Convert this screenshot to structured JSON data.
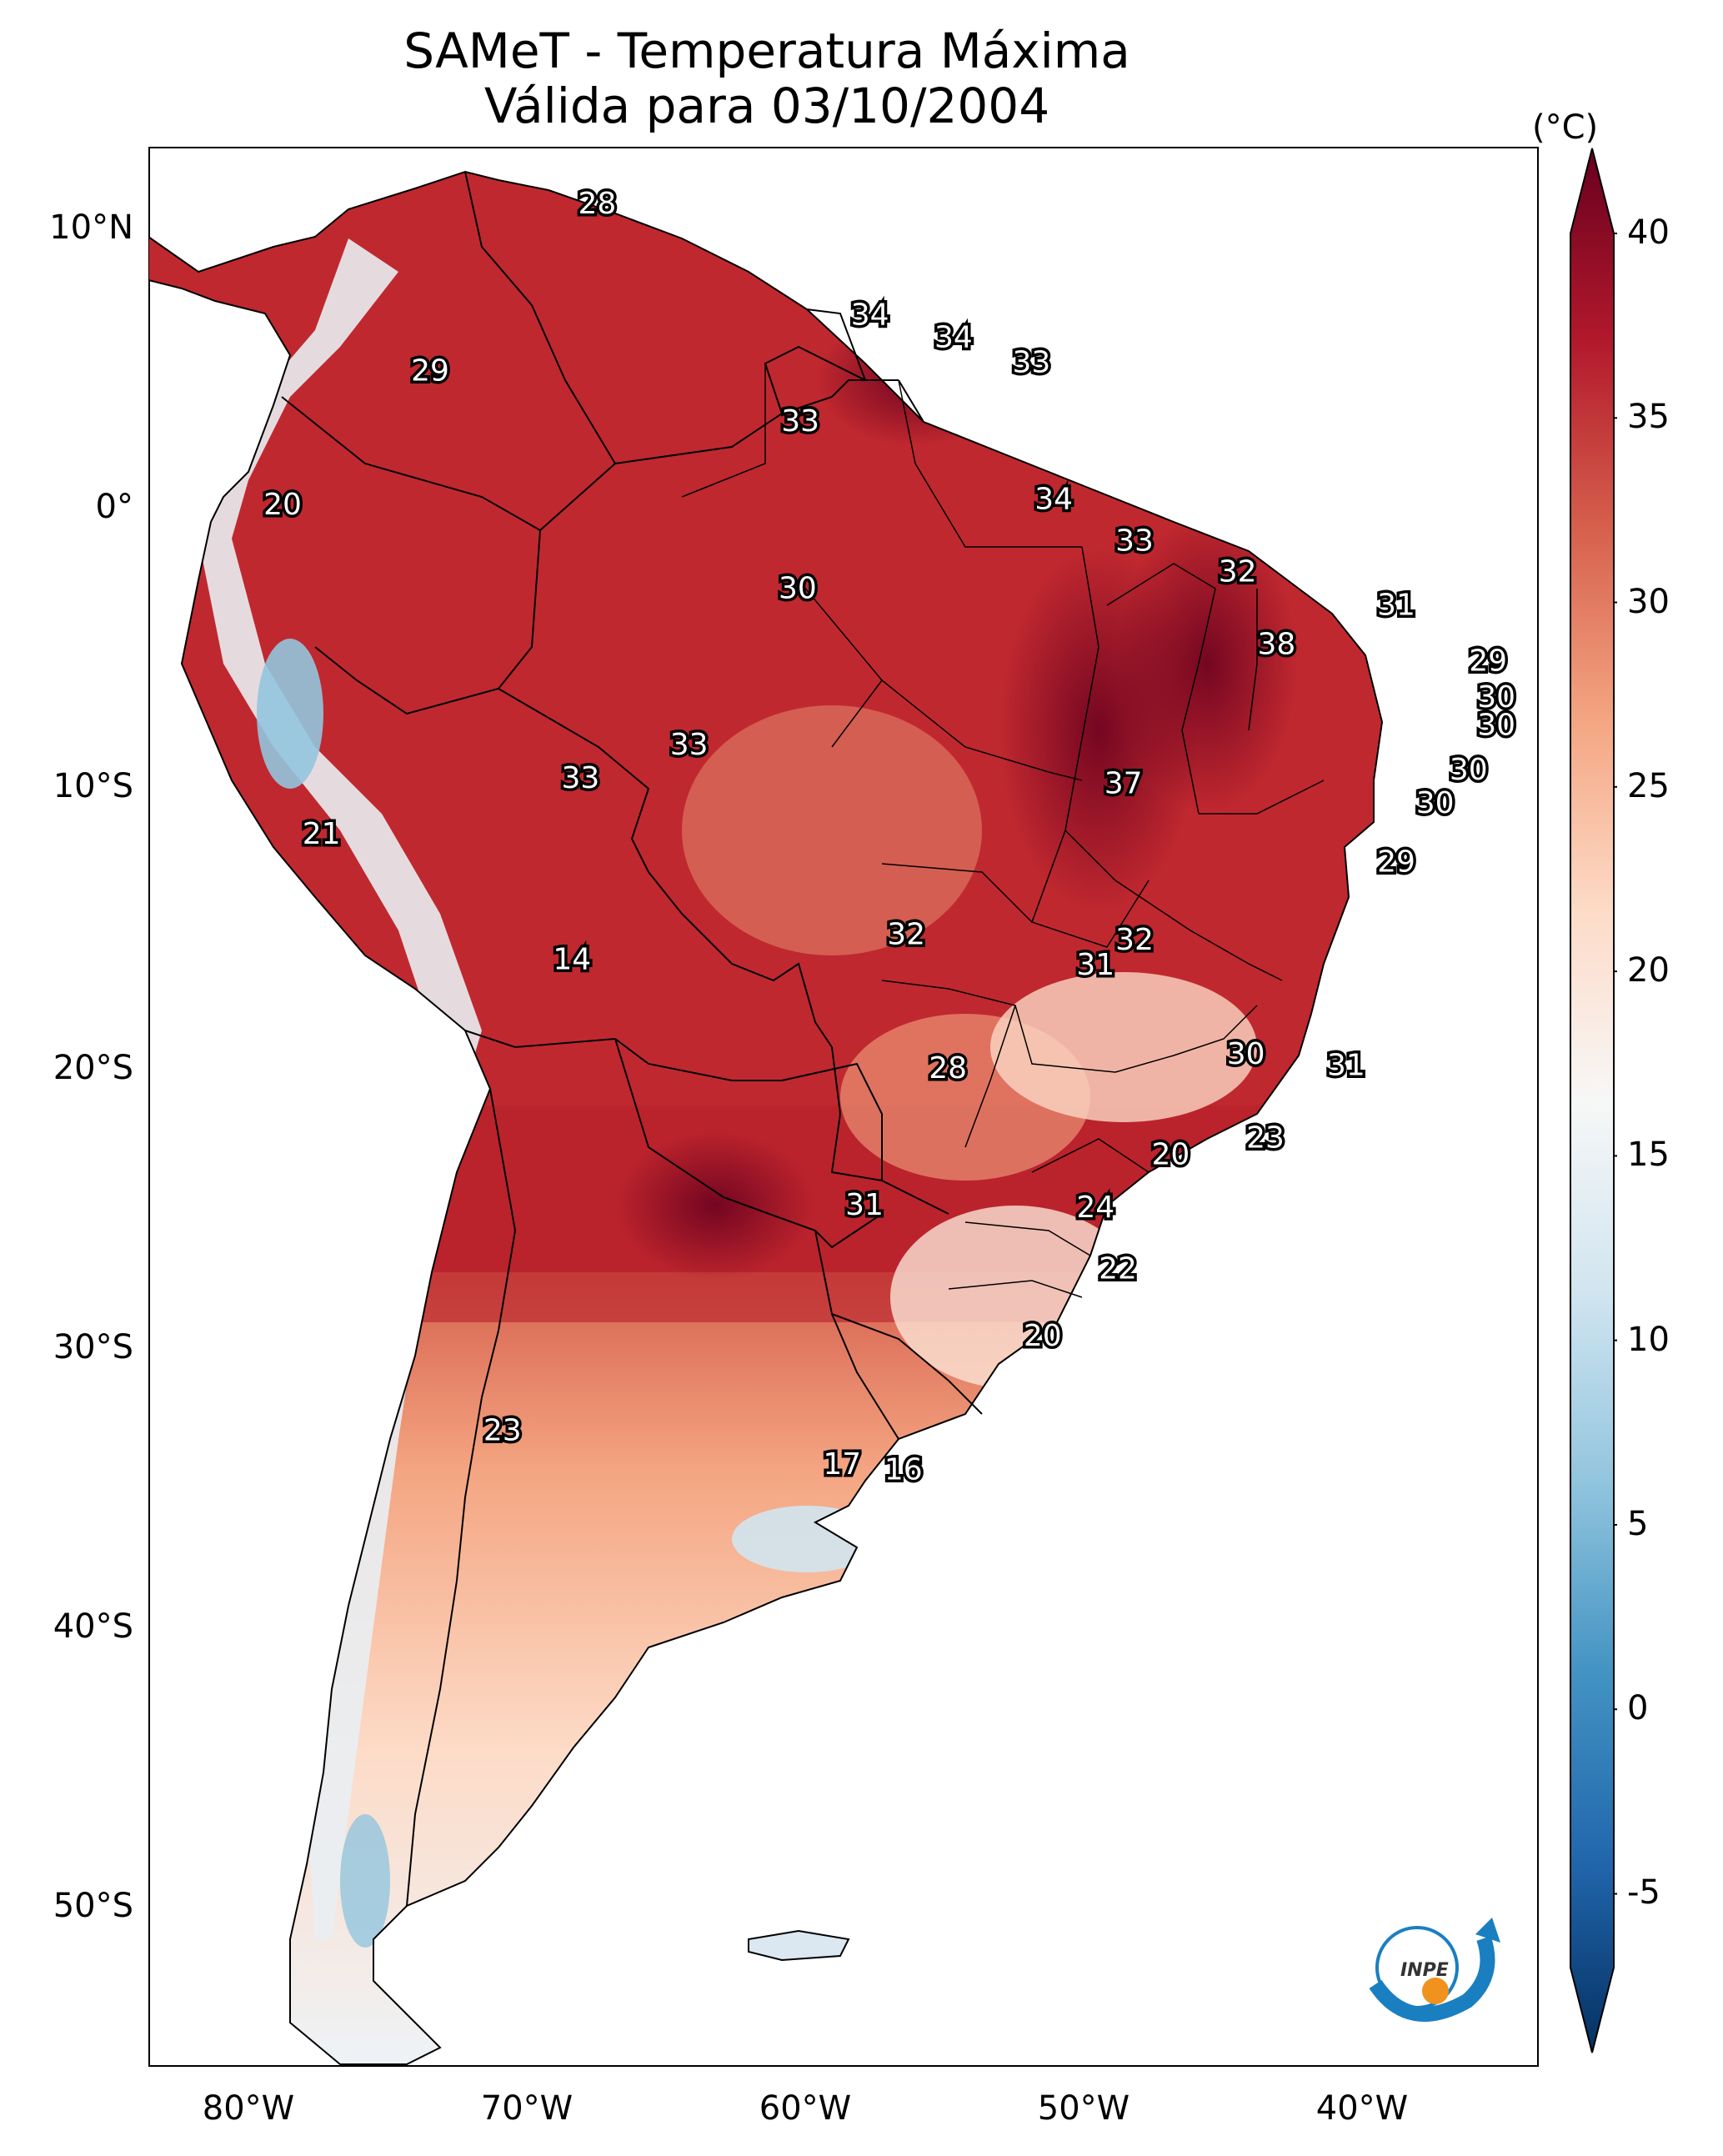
{
  "title": {
    "line1": "SAMeT - Temperatura Máxima",
    "line2": "Válida para 03/10/2004"
  },
  "axes": {
    "lat_ticks": [
      "10°N",
      "0°",
      "10°S",
      "20°S",
      "30°S",
      "40°S",
      "50°S"
    ],
    "lon_ticks": [
      "80°W",
      "70°W",
      "60°W",
      "50°W",
      "40°W"
    ]
  },
  "colorbar": {
    "unit": "(°C)",
    "ticks": [
      "40",
      "35",
      "30",
      "25",
      "20",
      "15",
      "10",
      "5",
      "0",
      "-5"
    ],
    "min": -7,
    "max": 40,
    "colors": [
      "#053061",
      "#2166ac",
      "#4393c3",
      "#92c5de",
      "#d1e5f0",
      "#f7f7f7",
      "#fddbc7",
      "#f4a582",
      "#d6604d",
      "#b2182b",
      "#67001f"
    ]
  },
  "stations": [
    {
      "value": "28",
      "lon": -67.2,
      "lat": 10.6
    },
    {
      "value": "29",
      "lon": -73.2,
      "lat": 4.6
    },
    {
      "value": "34",
      "lon": -57.4,
      "lat": 6.6
    },
    {
      "value": "34",
      "lon": -54.4,
      "lat": 5.8
    },
    {
      "value": "33",
      "lon": -51.6,
      "lat": 4.9
    },
    {
      "value": "33",
      "lon": -59.9,
      "lat": 2.8
    },
    {
      "value": "20",
      "lon": -78.5,
      "lat": -0.2
    },
    {
      "value": "34",
      "lon": -50.8,
      "lat": 0.0
    },
    {
      "value": "33",
      "lon": -47.9,
      "lat": -1.5
    },
    {
      "value": "30",
      "lon": -60.0,
      "lat": -3.2
    },
    {
      "value": "32",
      "lon": -44.2,
      "lat": -2.6
    },
    {
      "value": "31",
      "lon": -38.5,
      "lat": -3.8
    },
    {
      "value": "38",
      "lon": -42.8,
      "lat": -5.2
    },
    {
      "value": "29",
      "lon": -35.2,
      "lat": -5.8
    },
    {
      "value": "30",
      "lon": -34.9,
      "lat": -7.1
    },
    {
      "value": "30",
      "lon": -34.9,
      "lat": -8.1
    },
    {
      "value": "33",
      "lon": -63.9,
      "lat": -8.8
    },
    {
      "value": "33",
      "lon": -67.8,
      "lat": -10.0
    },
    {
      "value": "37",
      "lon": -48.3,
      "lat": -10.2
    },
    {
      "value": "30",
      "lon": -35.9,
      "lat": -9.7
    },
    {
      "value": "30",
      "lon": -37.1,
      "lat": -10.9
    },
    {
      "value": "21",
      "lon": -77.1,
      "lat": -12.0
    },
    {
      "value": "29",
      "lon": -38.5,
      "lat": -13.0
    },
    {
      "value": "32",
      "lon": -56.1,
      "lat": -15.6
    },
    {
      "value": "32",
      "lon": -47.9,
      "lat": -15.8
    },
    {
      "value": "31",
      "lon": -49.3,
      "lat": -16.7
    },
    {
      "value": "14",
      "lon": -68.1,
      "lat": -16.5
    },
    {
      "value": "30",
      "lon": -43.9,
      "lat": -19.9
    },
    {
      "value": "31",
      "lon": -40.3,
      "lat": -20.3
    },
    {
      "value": "28",
      "lon": -54.6,
      "lat": -20.4
    },
    {
      "value": "23",
      "lon": -43.2,
      "lat": -22.9
    },
    {
      "value": "20",
      "lon": -46.6,
      "lat": -23.5
    },
    {
      "value": "31",
      "lon": -57.6,
      "lat": -25.3
    },
    {
      "value": "24",
      "lon": -49.3,
      "lat": -25.4
    },
    {
      "value": "22",
      "lon": -48.5,
      "lat": -27.6
    },
    {
      "value": "20",
      "lon": -51.2,
      "lat": -30.0
    },
    {
      "value": "23",
      "lon": -70.6,
      "lat": -33.4
    },
    {
      "value": "17",
      "lon": -58.4,
      "lat": -34.6
    },
    {
      "value": "16",
      "lon": -56.2,
      "lat": -34.8
    }
  ]
}
